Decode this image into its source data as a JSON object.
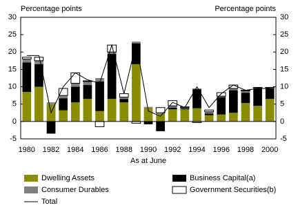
{
  "chart_data": {
    "type": "bar",
    "stacked": true,
    "y_label_left": "Percentage points",
    "y_label_right": "Percentage points",
    "x_label": "As at June",
    "categories": [
      "1980",
      null,
      "1982",
      null,
      "1984",
      null,
      "1986",
      null,
      "1988",
      null,
      "1990",
      null,
      "1992",
      null,
      "1994",
      null,
      "1996",
      null,
      "1998",
      null,
      "2000"
    ],
    "series": [
      {
        "name": "Dwelling Assets",
        "color": "#8c8c00",
        "values": [
          8.5,
          10,
          5,
          3.2,
          5.5,
          6.5,
          3,
          6.5,
          5.5,
          16.5,
          4,
          2.2,
          3.5,
          3.5,
          3.8,
          1.8,
          2,
          2.5,
          5.3,
          4.5,
          6.5
        ]
      },
      {
        "name": "Business Capital(a)",
        "color": "#000000",
        "values": [
          8.5,
          6.5,
          -3.5,
          3.5,
          4.5,
          4,
          8.5,
          13,
          1,
          6,
          -0.8,
          -2.8,
          0.5,
          0.3,
          5.5,
          0.5,
          5,
          6.5,
          3,
          5,
          3
        ]
      },
      {
        "name": "Consumer Durables",
        "color": "#808080",
        "values": [
          1,
          1,
          0.5,
          0.8,
          1,
          1,
          1,
          0.5,
          0.5,
          0.5,
          0.2,
          0.3,
          0.5,
          0.2,
          0.2,
          0.5,
          0.3,
          0.5,
          0.5,
          0.2,
          0.2
        ]
      },
      {
        "name": "Government Securities(b)",
        "color": "#ffffff",
        "values": [
          0.5,
          1,
          0,
          2,
          3,
          0.2,
          -1.5,
          2,
          1,
          -0.5,
          0,
          1.5,
          1.5,
          0.2,
          -0.3,
          0.5,
          1,
          1,
          0.2,
          0.1,
          0.1
        ]
      },
      {
        "name": "Total",
        "type": "line",
        "color": "#000000",
        "values": [
          19,
          19,
          2.5,
          10,
          14,
          12,
          11,
          22,
          8,
          22.5,
          3,
          1.5,
          5.5,
          4,
          10,
          4,
          8,
          10.5,
          9,
          9.5,
          9.5
        ]
      }
    ],
    "ylim": [
      -5,
      30
    ],
    "yticks": [
      -5,
      0,
      5,
      10,
      15,
      20,
      25,
      30
    ],
    "grid": false
  }
}
